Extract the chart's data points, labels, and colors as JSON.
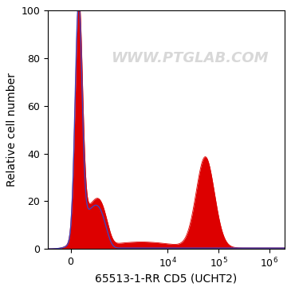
{
  "xlabel": "65513-1-RR CD5 (UCHT2)",
  "ylabel": "Relative cell number",
  "ylim": [
    0,
    100
  ],
  "watermark": "WWW.PTGLAB.COM",
  "background_color": "#ffffff",
  "plot_bg_color": "#ffffff",
  "blue_color": "#4444bb",
  "red_color": "#dd0000",
  "tick_label_fontsize": 9,
  "axis_label_fontsize": 10,
  "watermark_fontsize": 13,
  "watermark_color": "#c8c8c8",
  "watermark_alpha": 0.7,
  "linthresh": 300,
  "linscale": 0.35
}
